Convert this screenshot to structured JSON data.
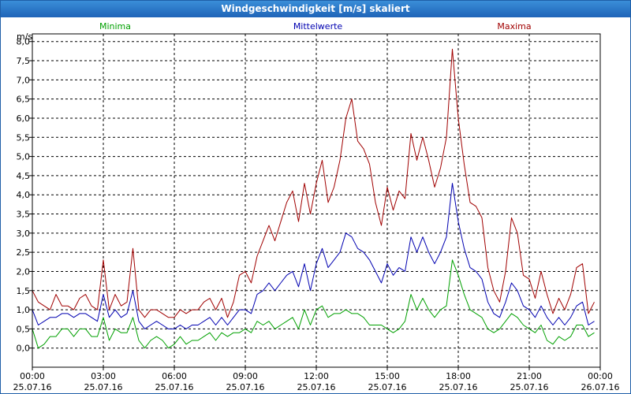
{
  "window": {
    "title": "Windgeschwindigkeit [m/s] skaliert"
  },
  "chart_data": {
    "type": "line",
    "title": "Windgeschwindigkeit [m/s] skaliert",
    "ylabel": "m/s",
    "ylim": [
      -0.5,
      8.2
    ],
    "yticks": [
      0,
      0.5,
      1,
      1.5,
      2,
      2.5,
      3,
      3.5,
      4,
      4.5,
      5,
      5.5,
      6,
      6.5,
      7,
      7.5,
      8
    ],
    "ytick_labels": [
      "0,0",
      "0,5",
      "1,0",
      "1,5",
      "2,0",
      "2,5",
      "3,0",
      "3,5",
      "4,0",
      "4,5",
      "5,0",
      "5,5",
      "6,0",
      "6,5",
      "7,0",
      "7,5",
      "8,0"
    ],
    "x_hours_range": [
      0,
      24
    ],
    "xticks": [
      {
        "hour": 0,
        "time": "00:00",
        "date": "25.07.16"
      },
      {
        "hour": 3,
        "time": "03:00",
        "date": "25.07.16"
      },
      {
        "hour": 6,
        "time": "06:00",
        "date": "25.07.16"
      },
      {
        "hour": 9,
        "time": "09:00",
        "date": "25.07.16"
      },
      {
        "hour": 12,
        "time": "12:00",
        "date": "25.07.16"
      },
      {
        "hour": 15,
        "time": "15:00",
        "date": "25.07.16"
      },
      {
        "hour": 18,
        "time": "18:00",
        "date": "25.07.16"
      },
      {
        "hour": 21,
        "time": "21:00",
        "date": "25.07.16"
      },
      {
        "hour": 24,
        "time": "00:00",
        "date": "26.07.16"
      }
    ],
    "legend": [
      "Minima",
      "Mittelwerte",
      "Maxima"
    ],
    "colors": {
      "min": "#00a000",
      "mean": "#0000b0",
      "max": "#a00000",
      "grid": "#000000"
    },
    "series": [
      {
        "name": "Maxima",
        "key": "max",
        "points": [
          [
            0,
            1.5
          ],
          [
            0.25,
            1.2
          ],
          [
            0.5,
            1.1
          ],
          [
            0.75,
            1.0
          ],
          [
            1.0,
            1.4
          ],
          [
            1.25,
            1.1
          ],
          [
            1.5,
            1.1
          ],
          [
            1.75,
            1.0
          ],
          [
            2.0,
            1.3
          ],
          [
            2.25,
            1.4
          ],
          [
            2.5,
            1.1
          ],
          [
            2.75,
            1.0
          ],
          [
            3.0,
            2.3
          ],
          [
            3.25,
            1.0
          ],
          [
            3.5,
            1.4
          ],
          [
            3.75,
            1.1
          ],
          [
            4.0,
            1.2
          ],
          [
            4.25,
            2.6
          ],
          [
            4.5,
            1.0
          ],
          [
            4.75,
            0.8
          ],
          [
            5.0,
            1.0
          ],
          [
            5.25,
            1.0
          ],
          [
            5.5,
            0.9
          ],
          [
            5.75,
            0.8
          ],
          [
            6.0,
            0.8
          ],
          [
            6.25,
            1.0
          ],
          [
            6.5,
            0.9
          ],
          [
            6.75,
            1.0
          ],
          [
            7.0,
            1.0
          ],
          [
            7.25,
            1.2
          ],
          [
            7.5,
            1.3
          ],
          [
            7.75,
            1.0
          ],
          [
            8.0,
            1.3
          ],
          [
            8.25,
            0.8
          ],
          [
            8.5,
            1.2
          ],
          [
            8.75,
            1.9
          ],
          [
            9.0,
            2.0
          ],
          [
            9.25,
            1.7
          ],
          [
            9.5,
            2.4
          ],
          [
            9.75,
            2.8
          ],
          [
            10.0,
            3.2
          ],
          [
            10.25,
            2.8
          ],
          [
            10.5,
            3.3
          ],
          [
            10.75,
            3.8
          ],
          [
            11.0,
            4.1
          ],
          [
            11.25,
            3.3
          ],
          [
            11.5,
            4.3
          ],
          [
            11.75,
            3.5
          ],
          [
            12.0,
            4.3
          ],
          [
            12.25,
            4.9
          ],
          [
            12.5,
            3.8
          ],
          [
            12.75,
            4.2
          ],
          [
            13.0,
            4.9
          ],
          [
            13.25,
            6.0
          ],
          [
            13.5,
            6.5
          ],
          [
            13.75,
            5.4
          ],
          [
            14.0,
            5.2
          ],
          [
            14.25,
            4.8
          ],
          [
            14.5,
            3.8
          ],
          [
            14.75,
            3.2
          ],
          [
            15.0,
            4.2
          ],
          [
            15.25,
            3.6
          ],
          [
            15.5,
            4.1
          ],
          [
            15.75,
            3.9
          ],
          [
            16.0,
            5.6
          ],
          [
            16.25,
            4.9
          ],
          [
            16.5,
            5.5
          ],
          [
            16.75,
            4.9
          ],
          [
            17.0,
            4.2
          ],
          [
            17.25,
            4.7
          ],
          [
            17.5,
            5.5
          ],
          [
            17.75,
            7.8
          ],
          [
            18.0,
            6.0
          ],
          [
            18.25,
            4.8
          ],
          [
            18.5,
            3.8
          ],
          [
            18.75,
            3.7
          ],
          [
            19.0,
            3.4
          ],
          [
            19.25,
            2.1
          ],
          [
            19.5,
            1.5
          ],
          [
            19.75,
            1.2
          ],
          [
            20.0,
            2.0
          ],
          [
            20.25,
            3.4
          ],
          [
            20.5,
            3.0
          ],
          [
            20.75,
            1.9
          ],
          [
            21.0,
            1.8
          ],
          [
            21.25,
            1.3
          ],
          [
            21.5,
            2.0
          ],
          [
            21.75,
            1.4
          ],
          [
            22.0,
            0.9
          ],
          [
            22.25,
            1.3
          ],
          [
            22.5,
            1.0
          ],
          [
            22.75,
            1.4
          ],
          [
            23.0,
            2.1
          ],
          [
            23.25,
            2.2
          ],
          [
            23.5,
            0.9
          ],
          [
            23.75,
            1.2
          ]
        ]
      },
      {
        "name": "Mittelwerte",
        "key": "mean",
        "points": [
          [
            0,
            1.0
          ],
          [
            0.25,
            0.6
          ],
          [
            0.5,
            0.7
          ],
          [
            0.75,
            0.8
          ],
          [
            1.0,
            0.8
          ],
          [
            1.25,
            0.9
          ],
          [
            1.5,
            0.9
          ],
          [
            1.75,
            0.8
          ],
          [
            2.0,
            0.9
          ],
          [
            2.25,
            0.9
          ],
          [
            2.5,
            0.8
          ],
          [
            2.75,
            0.7
          ],
          [
            3.0,
            1.4
          ],
          [
            3.25,
            0.8
          ],
          [
            3.5,
            1.0
          ],
          [
            3.75,
            0.8
          ],
          [
            4.0,
            0.9
          ],
          [
            4.25,
            1.5
          ],
          [
            4.5,
            0.7
          ],
          [
            4.75,
            0.5
          ],
          [
            5.0,
            0.6
          ],
          [
            5.25,
            0.7
          ],
          [
            5.5,
            0.6
          ],
          [
            5.75,
            0.5
          ],
          [
            6.0,
            0.5
          ],
          [
            6.25,
            0.6
          ],
          [
            6.5,
            0.5
          ],
          [
            6.75,
            0.6
          ],
          [
            7.0,
            0.6
          ],
          [
            7.25,
            0.7
          ],
          [
            7.5,
            0.8
          ],
          [
            7.75,
            0.6
          ],
          [
            8.0,
            0.8
          ],
          [
            8.25,
            0.6
          ],
          [
            8.5,
            0.8
          ],
          [
            8.75,
            1.0
          ],
          [
            9.0,
            1.0
          ],
          [
            9.25,
            0.9
          ],
          [
            9.5,
            1.4
          ],
          [
            9.75,
            1.5
          ],
          [
            10.0,
            1.7
          ],
          [
            10.25,
            1.5
          ],
          [
            10.5,
            1.7
          ],
          [
            10.75,
            1.9
          ],
          [
            11.0,
            2.0
          ],
          [
            11.25,
            1.6
          ],
          [
            11.5,
            2.2
          ],
          [
            11.75,
            1.5
          ],
          [
            12.0,
            2.2
          ],
          [
            12.25,
            2.6
          ],
          [
            12.5,
            2.1
          ],
          [
            12.75,
            2.3
          ],
          [
            13.0,
            2.5
          ],
          [
            13.25,
            3.0
          ],
          [
            13.5,
            2.9
          ],
          [
            13.75,
            2.6
          ],
          [
            14.0,
            2.5
          ],
          [
            14.25,
            2.3
          ],
          [
            14.5,
            2.0
          ],
          [
            14.75,
            1.7
          ],
          [
            15.0,
            2.2
          ],
          [
            15.25,
            1.9
          ],
          [
            15.5,
            2.1
          ],
          [
            15.75,
            2.0
          ],
          [
            16.0,
            2.9
          ],
          [
            16.25,
            2.5
          ],
          [
            16.5,
            2.9
          ],
          [
            16.75,
            2.5
          ],
          [
            17.0,
            2.2
          ],
          [
            17.25,
            2.5
          ],
          [
            17.5,
            2.9
          ],
          [
            17.75,
            4.3
          ],
          [
            18.0,
            3.3
          ],
          [
            18.25,
            2.6
          ],
          [
            18.5,
            2.1
          ],
          [
            18.75,
            2.0
          ],
          [
            19.0,
            1.8
          ],
          [
            19.25,
            1.2
          ],
          [
            19.5,
            0.9
          ],
          [
            19.75,
            0.8
          ],
          [
            20.0,
            1.2
          ],
          [
            20.25,
            1.7
          ],
          [
            20.5,
            1.5
          ],
          [
            20.75,
            1.1
          ],
          [
            21.0,
            1.0
          ],
          [
            21.25,
            0.8
          ],
          [
            21.5,
            1.1
          ],
          [
            21.75,
            0.8
          ],
          [
            22.0,
            0.6
          ],
          [
            22.25,
            0.8
          ],
          [
            22.5,
            0.6
          ],
          [
            22.75,
            0.8
          ],
          [
            23.0,
            1.1
          ],
          [
            23.25,
            1.2
          ],
          [
            23.5,
            0.6
          ],
          [
            23.75,
            0.7
          ]
        ]
      },
      {
        "name": "Minima",
        "key": "min",
        "points": [
          [
            0,
            0.5
          ],
          [
            0.25,
            0.0
          ],
          [
            0.5,
            0.1
          ],
          [
            0.75,
            0.3
          ],
          [
            1.0,
            0.3
          ],
          [
            1.25,
            0.5
          ],
          [
            1.5,
            0.5
          ],
          [
            1.75,
            0.3
          ],
          [
            2.0,
            0.5
          ],
          [
            2.25,
            0.5
          ],
          [
            2.5,
            0.3
          ],
          [
            2.75,
            0.3
          ],
          [
            3.0,
            0.8
          ],
          [
            3.25,
            0.2
          ],
          [
            3.5,
            0.5
          ],
          [
            3.75,
            0.4
          ],
          [
            4.0,
            0.4
          ],
          [
            4.25,
            0.8
          ],
          [
            4.5,
            0.2
          ],
          [
            4.75,
            0.0
          ],
          [
            5.0,
            0.2
          ],
          [
            5.25,
            0.3
          ],
          [
            5.5,
            0.2
          ],
          [
            5.75,
            0.0
          ],
          [
            6.0,
            0.1
          ],
          [
            6.25,
            0.3
          ],
          [
            6.5,
            0.1
          ],
          [
            6.75,
            0.2
          ],
          [
            7.0,
            0.2
          ],
          [
            7.25,
            0.3
          ],
          [
            7.5,
            0.4
          ],
          [
            7.75,
            0.2
          ],
          [
            8.0,
            0.4
          ],
          [
            8.25,
            0.3
          ],
          [
            8.5,
            0.4
          ],
          [
            8.75,
            0.4
          ],
          [
            9.0,
            0.5
          ],
          [
            9.25,
            0.4
          ],
          [
            9.5,
            0.7
          ],
          [
            9.75,
            0.6
          ],
          [
            10.0,
            0.7
          ],
          [
            10.25,
            0.5
          ],
          [
            10.5,
            0.6
          ],
          [
            10.75,
            0.7
          ],
          [
            11.0,
            0.8
          ],
          [
            11.25,
            0.5
          ],
          [
            11.5,
            1.0
          ],
          [
            11.75,
            0.6
          ],
          [
            12.0,
            1.0
          ],
          [
            12.25,
            1.1
          ],
          [
            12.5,
            0.8
          ],
          [
            12.75,
            0.9
          ],
          [
            13.0,
            0.9
          ],
          [
            13.25,
            1.0
          ],
          [
            13.5,
            0.9
          ],
          [
            13.75,
            0.9
          ],
          [
            14.0,
            0.8
          ],
          [
            14.25,
            0.6
          ],
          [
            14.5,
            0.6
          ],
          [
            14.75,
            0.6
          ],
          [
            15.0,
            0.5
          ],
          [
            15.25,
            0.4
          ],
          [
            15.5,
            0.5
          ],
          [
            15.75,
            0.7
          ],
          [
            16.0,
            1.4
          ],
          [
            16.25,
            1.0
          ],
          [
            16.5,
            1.3
          ],
          [
            16.75,
            1.0
          ],
          [
            17.0,
            0.8
          ],
          [
            17.25,
            1.0
          ],
          [
            17.5,
            1.1
          ],
          [
            17.75,
            2.3
          ],
          [
            18.0,
            1.9
          ],
          [
            18.25,
            1.4
          ],
          [
            18.5,
            1.0
          ],
          [
            18.75,
            0.9
          ],
          [
            19.0,
            0.8
          ],
          [
            19.25,
            0.5
          ],
          [
            19.5,
            0.4
          ],
          [
            19.75,
            0.5
          ],
          [
            20.0,
            0.7
          ],
          [
            20.25,
            0.9
          ],
          [
            20.5,
            0.8
          ],
          [
            20.75,
            0.6
          ],
          [
            21.0,
            0.5
          ],
          [
            21.25,
            0.4
          ],
          [
            21.5,
            0.6
          ],
          [
            21.75,
            0.2
          ],
          [
            22.0,
            0.1
          ],
          [
            22.25,
            0.3
          ],
          [
            22.5,
            0.2
          ],
          [
            22.75,
            0.3
          ],
          [
            23.0,
            0.6
          ],
          [
            23.25,
            0.6
          ],
          [
            23.5,
            0.3
          ],
          [
            23.75,
            0.4
          ]
        ]
      }
    ]
  }
}
